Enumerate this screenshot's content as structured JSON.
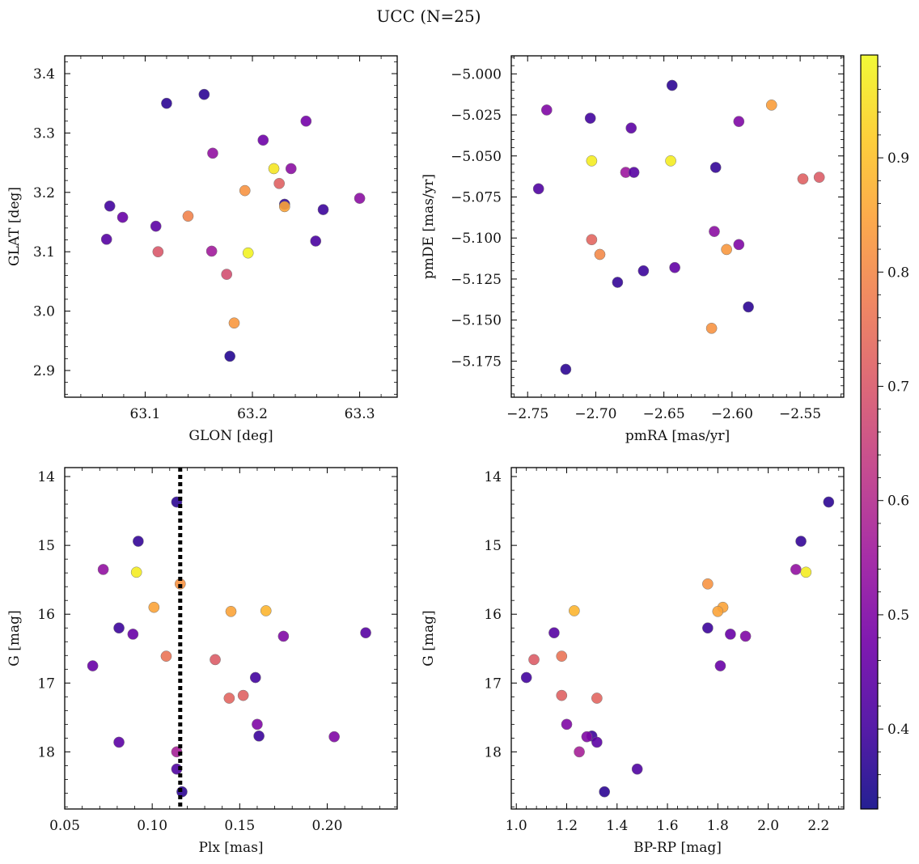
{
  "figure": {
    "title": "UCC (N=25)"
  },
  "colorbar": {
    "range": [
      0.33,
      0.99
    ],
    "ticks": [
      0.4,
      0.5,
      0.6,
      0.7,
      0.8,
      0.9
    ],
    "tick_labels": [
      "0.4",
      "0.5",
      "0.6",
      "0.7",
      "0.8",
      "0.9"
    ],
    "colormap": [
      "#0d0887",
      "#46039f",
      "#7201a8",
      "#9c179e",
      "#bd3786",
      "#d8576b",
      "#ed7953",
      "#fb9f3a",
      "#fdca26",
      "#f0f921"
    ]
  },
  "chart_data": [
    {
      "type": "scatter",
      "title": "",
      "xlabel": "GLON [deg]",
      "ylabel": "GLAT [deg]",
      "xlim": [
        63.025,
        63.335
      ],
      "ylim": [
        2.855,
        3.43
      ],
      "y_inverted": false,
      "xticks": [
        63.1,
        63.2,
        63.3
      ],
      "xtick_labels": [
        "63.1",
        "63.2",
        "63.3"
      ],
      "yticks": [
        2.9,
        3.0,
        3.1,
        3.2,
        3.3,
        3.4
      ],
      "ytick_labels": [
        "2.9",
        "3.0",
        "3.1",
        "3.2",
        "3.3",
        "3.4"
      ],
      "vline": null,
      "points": [
        {
          "x": 63.12,
          "y": 3.35,
          "c": 0.37
        },
        {
          "x": 63.155,
          "y": 3.365,
          "c": 0.37
        },
        {
          "x": 63.25,
          "y": 3.32,
          "c": 0.48
        },
        {
          "x": 63.21,
          "y": 3.288,
          "c": 0.47
        },
        {
          "x": 63.163,
          "y": 3.266,
          "c": 0.53
        },
        {
          "x": 63.22,
          "y": 3.24,
          "c": 0.96
        },
        {
          "x": 63.236,
          "y": 3.24,
          "c": 0.52
        },
        {
          "x": 63.225,
          "y": 3.215,
          "c": 0.72
        },
        {
          "x": 63.193,
          "y": 3.203,
          "c": 0.82
        },
        {
          "x": 63.3,
          "y": 3.19,
          "c": 0.52
        },
        {
          "x": 63.23,
          "y": 3.18,
          "c": 0.38
        },
        {
          "x": 63.23,
          "y": 3.176,
          "c": 0.85
        },
        {
          "x": 63.067,
          "y": 3.177,
          "c": 0.4
        },
        {
          "x": 63.266,
          "y": 3.171,
          "c": 0.39
        },
        {
          "x": 63.079,
          "y": 3.158,
          "c": 0.46
        },
        {
          "x": 63.14,
          "y": 3.16,
          "c": 0.79
        },
        {
          "x": 63.11,
          "y": 3.143,
          "c": 0.44
        },
        {
          "x": 63.064,
          "y": 3.121,
          "c": 0.43
        },
        {
          "x": 63.259,
          "y": 3.118,
          "c": 0.41
        },
        {
          "x": 63.112,
          "y": 3.1,
          "c": 0.7
        },
        {
          "x": 63.162,
          "y": 3.101,
          "c": 0.56
        },
        {
          "x": 63.196,
          "y": 3.098,
          "c": 0.98
        },
        {
          "x": 63.176,
          "y": 3.062,
          "c": 0.68
        },
        {
          "x": 63.183,
          "y": 2.98,
          "c": 0.83
        },
        {
          "x": 63.179,
          "y": 2.924,
          "c": 0.36
        }
      ]
    },
    {
      "type": "scatter",
      "title": "",
      "xlabel": "pmRA [mas/yr]",
      "ylabel": "pmDE [mas/yr]",
      "xlim": [
        -2.762,
        -2.518
      ],
      "ylim": [
        -5.197,
        -4.989
      ],
      "y_inverted": false,
      "xticks": [
        -2.75,
        -2.7,
        -2.65,
        -2.6,
        -2.55
      ],
      "xtick_labels": [
        "−2.75",
        "−2.70",
        "−2.65",
        "−2.60",
        "−2.55"
      ],
      "yticks": [
        -5.175,
        -5.15,
        -5.125,
        -5.1,
        -5.075,
        -5.05,
        -5.025,
        -5.0
      ],
      "ytick_labels": [
        "−5.175",
        "−5.150",
        "−5.125",
        "−5.100",
        "−5.075",
        "−5.050",
        "−5.025",
        "−5.000"
      ],
      "vline": null,
      "points": [
        {
          "x": -2.644,
          "y": -5.007,
          "c": 0.37
        },
        {
          "x": -2.571,
          "y": -5.019,
          "c": 0.84
        },
        {
          "x": -2.736,
          "y": -5.022,
          "c": 0.5
        },
        {
          "x": -2.704,
          "y": -5.027,
          "c": 0.4
        },
        {
          "x": -2.595,
          "y": -5.029,
          "c": 0.5
        },
        {
          "x": -2.674,
          "y": -5.033,
          "c": 0.44
        },
        {
          "x": -2.703,
          "y": -5.053,
          "c": 0.97
        },
        {
          "x": -2.645,
          "y": -5.053,
          "c": 0.97
        },
        {
          "x": -2.612,
          "y": -5.057,
          "c": 0.38
        },
        {
          "x": -2.678,
          "y": -5.06,
          "c": 0.55
        },
        {
          "x": -2.672,
          "y": -5.06,
          "c": 0.43
        },
        {
          "x": -2.548,
          "y": -5.064,
          "c": 0.72
        },
        {
          "x": -2.536,
          "y": -5.063,
          "c": 0.71
        },
        {
          "x": -2.742,
          "y": -5.07,
          "c": 0.42
        },
        {
          "x": -2.613,
          "y": -5.096,
          "c": 0.52
        },
        {
          "x": -2.703,
          "y": -5.101,
          "c": 0.73
        },
        {
          "x": -2.595,
          "y": -5.104,
          "c": 0.5
        },
        {
          "x": -2.604,
          "y": -5.107,
          "c": 0.83
        },
        {
          "x": -2.697,
          "y": -5.11,
          "c": 0.8
        },
        {
          "x": -2.642,
          "y": -5.118,
          "c": 0.45
        },
        {
          "x": -2.665,
          "y": -5.12,
          "c": 0.39
        },
        {
          "x": -2.684,
          "y": -5.127,
          "c": 0.38
        },
        {
          "x": -2.588,
          "y": -5.142,
          "c": 0.37
        },
        {
          "x": -2.615,
          "y": -5.155,
          "c": 0.82
        },
        {
          "x": -2.722,
          "y": -5.18,
          "c": 0.37
        }
      ]
    },
    {
      "type": "scatter",
      "title": "",
      "xlabel": "Plx [mas]",
      "ylabel": "G [mag]",
      "xlim": [
        0.05,
        0.24
      ],
      "ylim": [
        18.83,
        13.87
      ],
      "y_inverted": true,
      "xticks": [
        0.05,
        0.1,
        0.15,
        0.2
      ],
      "xtick_labels": [
        "0.05",
        "0.10",
        "0.15",
        "0.20"
      ],
      "yticks": [
        14,
        15,
        16,
        17,
        18
      ],
      "ytick_labels": [
        "14",
        "15",
        "16",
        "17",
        "18"
      ],
      "vline": {
        "x": 0.116,
        "style": "dotted"
      },
      "points": [
        {
          "x": 0.114,
          "y": 14.37,
          "c": 0.37
        },
        {
          "x": 0.092,
          "y": 14.94,
          "c": 0.38
        },
        {
          "x": 0.072,
          "y": 15.35,
          "c": 0.53
        },
        {
          "x": 0.091,
          "y": 15.39,
          "c": 0.97
        },
        {
          "x": 0.116,
          "y": 15.56,
          "c": 0.82
        },
        {
          "x": 0.101,
          "y": 15.9,
          "c": 0.85
        },
        {
          "x": 0.145,
          "y": 15.96,
          "c": 0.85
        },
        {
          "x": 0.165,
          "y": 15.95,
          "c": 0.88
        },
        {
          "x": 0.081,
          "y": 16.2,
          "c": 0.39
        },
        {
          "x": 0.089,
          "y": 16.29,
          "c": 0.46
        },
        {
          "x": 0.222,
          "y": 16.27,
          "c": 0.43
        },
        {
          "x": 0.175,
          "y": 16.32,
          "c": 0.5
        },
        {
          "x": 0.108,
          "y": 16.61,
          "c": 0.76
        },
        {
          "x": 0.136,
          "y": 16.66,
          "c": 0.71
        },
        {
          "x": 0.066,
          "y": 16.75,
          "c": 0.46
        },
        {
          "x": 0.159,
          "y": 16.92,
          "c": 0.4
        },
        {
          "x": 0.152,
          "y": 17.18,
          "c": 0.72
        },
        {
          "x": 0.144,
          "y": 17.22,
          "c": 0.73
        },
        {
          "x": 0.16,
          "y": 17.6,
          "c": 0.5
        },
        {
          "x": 0.161,
          "y": 17.77,
          "c": 0.39
        },
        {
          "x": 0.204,
          "y": 17.78,
          "c": 0.5
        },
        {
          "x": 0.081,
          "y": 17.86,
          "c": 0.44
        },
        {
          "x": 0.114,
          "y": 18.0,
          "c": 0.57
        },
        {
          "x": 0.114,
          "y": 18.25,
          "c": 0.42
        },
        {
          "x": 0.117,
          "y": 18.58,
          "c": 0.37
        }
      ]
    },
    {
      "type": "scatter",
      "title": "",
      "xlabel": "BP-RP [mag]",
      "ylabel": "G [mag]",
      "xlim": [
        0.98,
        2.3
      ],
      "ylim": [
        18.83,
        13.87
      ],
      "y_inverted": true,
      "xticks": [
        1.0,
        1.2,
        1.4,
        1.6,
        1.8,
        2.0,
        2.2
      ],
      "xtick_labels": [
        "1.0",
        "1.2",
        "1.4",
        "1.6",
        "1.8",
        "2.0",
        "2.2"
      ],
      "yticks": [
        14,
        15,
        16,
        17,
        18
      ],
      "ytick_labels": [
        "14",
        "15",
        "16",
        "17",
        "18"
      ],
      "vline": null,
      "points": [
        {
          "x": 2.24,
          "y": 14.37,
          "c": 0.37
        },
        {
          "x": 2.13,
          "y": 14.94,
          "c": 0.38
        },
        {
          "x": 2.11,
          "y": 15.35,
          "c": 0.53
        },
        {
          "x": 2.15,
          "y": 15.39,
          "c": 0.97
        },
        {
          "x": 1.76,
          "y": 15.56,
          "c": 0.82
        },
        {
          "x": 1.82,
          "y": 15.9,
          "c": 0.85
        },
        {
          "x": 1.8,
          "y": 15.96,
          "c": 0.85
        },
        {
          "x": 1.23,
          "y": 15.95,
          "c": 0.88
        },
        {
          "x": 1.76,
          "y": 16.2,
          "c": 0.39
        },
        {
          "x": 1.85,
          "y": 16.29,
          "c": 0.46
        },
        {
          "x": 1.15,
          "y": 16.27,
          "c": 0.43
        },
        {
          "x": 1.91,
          "y": 16.32,
          "c": 0.5
        },
        {
          "x": 1.18,
          "y": 16.61,
          "c": 0.76
        },
        {
          "x": 1.07,
          "y": 16.66,
          "c": 0.71
        },
        {
          "x": 1.81,
          "y": 16.75,
          "c": 0.46
        },
        {
          "x": 1.04,
          "y": 16.92,
          "c": 0.4
        },
        {
          "x": 1.18,
          "y": 17.18,
          "c": 0.72
        },
        {
          "x": 1.32,
          "y": 17.22,
          "c": 0.73
        },
        {
          "x": 1.2,
          "y": 17.6,
          "c": 0.5
        },
        {
          "x": 1.3,
          "y": 17.77,
          "c": 0.39
        },
        {
          "x": 1.28,
          "y": 17.78,
          "c": 0.5
        },
        {
          "x": 1.32,
          "y": 17.86,
          "c": 0.44
        },
        {
          "x": 1.25,
          "y": 18.0,
          "c": 0.57
        },
        {
          "x": 1.48,
          "y": 18.25,
          "c": 0.42
        },
        {
          "x": 1.35,
          "y": 18.58,
          "c": 0.37
        }
      ]
    }
  ]
}
